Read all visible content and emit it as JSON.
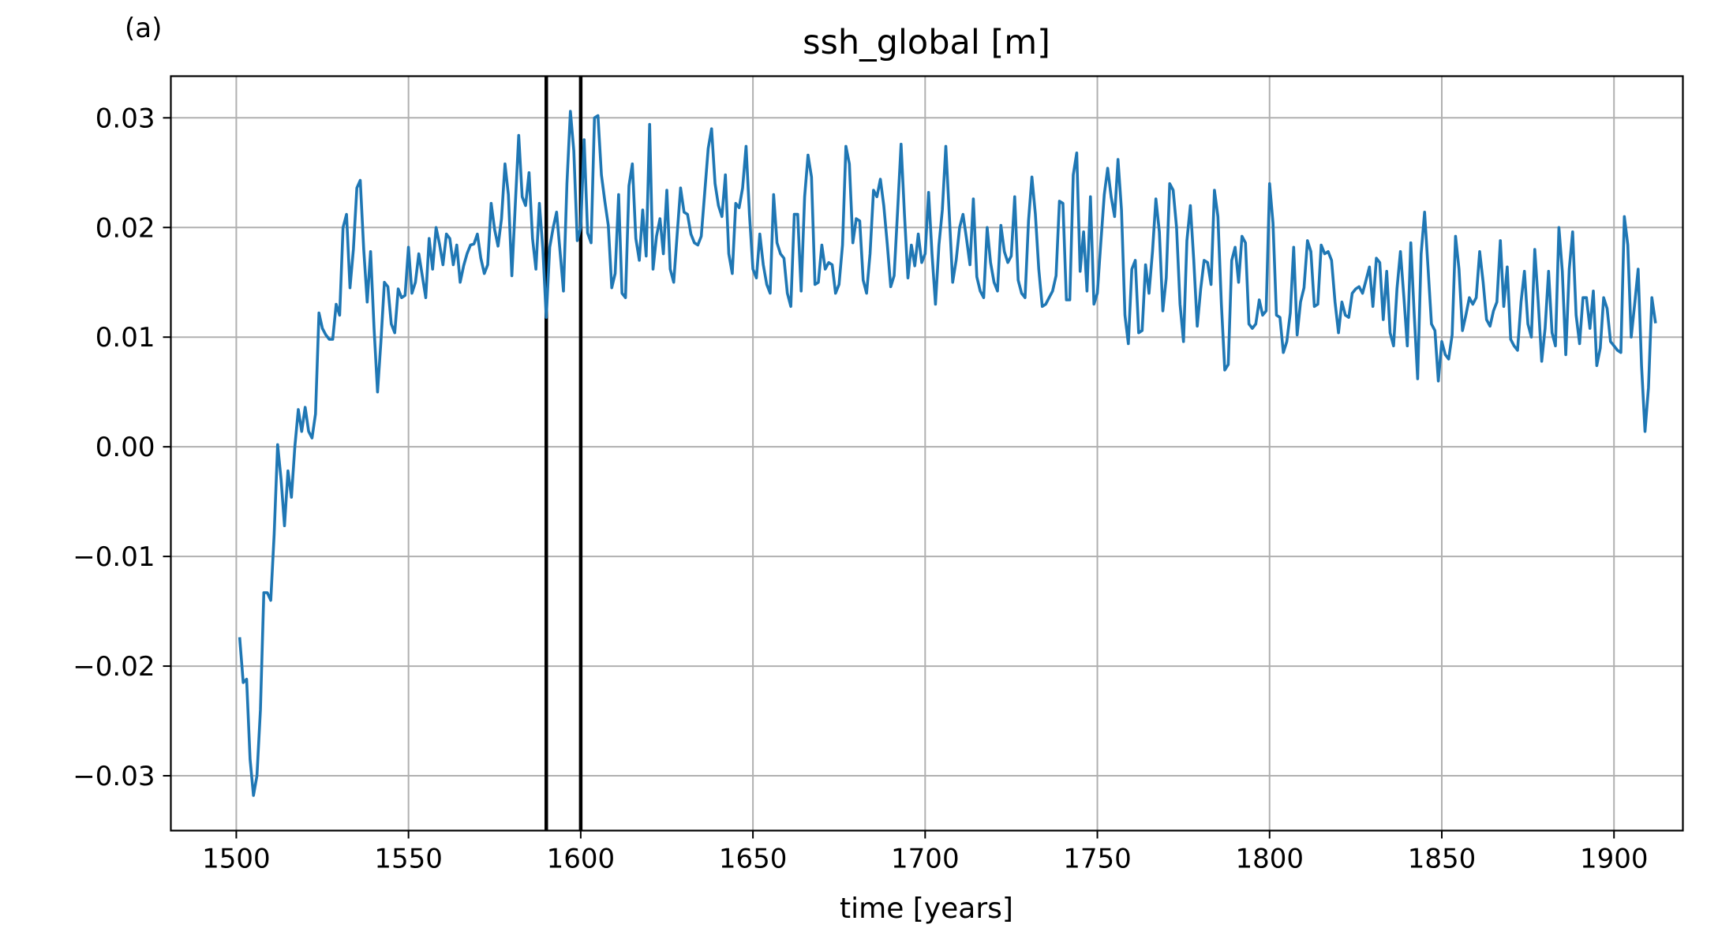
{
  "chart_data": {
    "type": "line",
    "panel_label": "(a)",
    "title": "ssh_global [m]",
    "xlabel": "time [years]",
    "ylabel": "",
    "xlim": [
      1481,
      1920
    ],
    "ylim": [
      -0.035,
      0.0338
    ],
    "xticks": [
      1500,
      1550,
      1600,
      1650,
      1700,
      1750,
      1800,
      1850,
      1900
    ],
    "xtick_labels": [
      "1500",
      "1550",
      "1600",
      "1650",
      "1700",
      "1750",
      "1800",
      "1850",
      "1900"
    ],
    "yticks": [
      -0.03,
      -0.02,
      -0.01,
      0.0,
      0.01,
      0.02,
      0.03
    ],
    "ytick_labels": [
      "−0.03",
      "−0.02",
      "−0.01",
      "0.00",
      "0.01",
      "0.02",
      "0.03"
    ],
    "grid": true,
    "vertical_lines": [
      1590,
      1600
    ],
    "colors": {
      "series": "#1f77b4",
      "vlines": "#000000",
      "grid": "#b0b0b0"
    },
    "series": [
      {
        "x_start": 1501,
        "x_step": 1,
        "values": [
          -0.0175,
          -0.0215,
          -0.0212,
          -0.0285,
          -0.0318,
          -0.03,
          -0.024,
          -0.0133,
          -0.0133,
          -0.014,
          -0.008,
          0.0002,
          -0.003,
          -0.0072,
          -0.0022,
          -0.0046,
          0.0,
          0.0034,
          0.0014,
          0.0036,
          0.0014,
          0.0008,
          0.003,
          0.0122,
          0.0108,
          0.0102,
          0.0098,
          0.0098,
          0.013,
          0.012,
          0.02,
          0.0212,
          0.0145,
          0.018,
          0.0236,
          0.0243,
          0.018,
          0.0132,
          0.0178,
          0.0108,
          0.005,
          0.0096,
          0.015,
          0.0146,
          0.0112,
          0.0104,
          0.0144,
          0.0136,
          0.0138,
          0.0182,
          0.014,
          0.015,
          0.0176,
          0.0156,
          0.0136,
          0.019,
          0.0162,
          0.02,
          0.0185,
          0.0166,
          0.0194,
          0.019,
          0.0166,
          0.0184,
          0.015,
          0.0165,
          0.0176,
          0.0184,
          0.0185,
          0.0194,
          0.0172,
          0.0158,
          0.0166,
          0.0222,
          0.0198,
          0.0183,
          0.0208,
          0.0258,
          0.023,
          0.0156,
          0.022,
          0.0284,
          0.0228,
          0.022,
          0.025,
          0.019,
          0.0162,
          0.0222,
          0.018,
          0.0118,
          0.0182,
          0.02,
          0.0214,
          0.0178,
          0.0142,
          0.024,
          0.0306,
          0.027,
          0.0188,
          0.02,
          0.028,
          0.0195,
          0.0186,
          0.03,
          0.0302,
          0.0248,
          0.0224,
          0.0202,
          0.0145,
          0.0158,
          0.023,
          0.014,
          0.0136,
          0.0238,
          0.0258,
          0.019,
          0.017,
          0.0216,
          0.0174,
          0.0294,
          0.0162,
          0.0192,
          0.0208,
          0.0176,
          0.0234,
          0.0162,
          0.015,
          0.0194,
          0.0236,
          0.0214,
          0.0212,
          0.0194,
          0.0186,
          0.0184,
          0.0192,
          0.0232,
          0.0272,
          0.029,
          0.024,
          0.022,
          0.021,
          0.0248,
          0.0176,
          0.0158,
          0.0222,
          0.0218,
          0.0236,
          0.0274,
          0.0212,
          0.0162,
          0.0154,
          0.0194,
          0.0166,
          0.0148,
          0.014,
          0.023,
          0.0186,
          0.0176,
          0.0172,
          0.014,
          0.0128,
          0.0212,
          0.0212,
          0.0142,
          0.0228,
          0.0266,
          0.0246,
          0.0148,
          0.015,
          0.0184,
          0.0162,
          0.0168,
          0.0166,
          0.014,
          0.0148,
          0.0184,
          0.0274,
          0.0258,
          0.0186,
          0.0208,
          0.0206,
          0.0152,
          0.014,
          0.0176,
          0.0234,
          0.0228,
          0.0244,
          0.022,
          0.0185,
          0.0146,
          0.0156,
          0.0215,
          0.0276,
          0.0212,
          0.0154,
          0.0184,
          0.0165,
          0.0194,
          0.0168,
          0.0176,
          0.0232,
          0.0176,
          0.013,
          0.0184,
          0.0216,
          0.0274,
          0.0212,
          0.015,
          0.017,
          0.02,
          0.0212,
          0.019,
          0.0166,
          0.0226,
          0.0155,
          0.0142,
          0.0136,
          0.02,
          0.0168,
          0.015,
          0.0142,
          0.0202,
          0.0178,
          0.0168,
          0.0174,
          0.0228,
          0.0152,
          0.014,
          0.0136,
          0.0206,
          0.0246,
          0.0212,
          0.0162,
          0.0128,
          0.013,
          0.0136,
          0.0142,
          0.0156,
          0.0224,
          0.0222,
          0.0134,
          0.0134,
          0.0248,
          0.0268,
          0.016,
          0.0196,
          0.0142,
          0.0228,
          0.013,
          0.014,
          0.0186,
          0.023,
          0.0254,
          0.0228,
          0.021,
          0.0262,
          0.0216,
          0.012,
          0.0094,
          0.0162,
          0.017,
          0.0104,
          0.0106,
          0.0166,
          0.014,
          0.0178,
          0.0226,
          0.0196,
          0.0124,
          0.0154,
          0.024,
          0.0234,
          0.02,
          0.013,
          0.0096,
          0.0188,
          0.022,
          0.017,
          0.011,
          0.0144,
          0.017,
          0.0168,
          0.0148,
          0.0234,
          0.021,
          0.013,
          0.007,
          0.0075,
          0.017,
          0.0182,
          0.015,
          0.0192,
          0.0186,
          0.0112,
          0.0108,
          0.0112,
          0.0134,
          0.012,
          0.0124,
          0.024,
          0.0204,
          0.012,
          0.0118,
          0.0086,
          0.0096,
          0.0122,
          0.0182,
          0.0102,
          0.0132,
          0.0145,
          0.0188,
          0.0178,
          0.0128,
          0.013,
          0.0184,
          0.0176,
          0.0178,
          0.017,
          0.0132,
          0.0104,
          0.0132,
          0.012,
          0.0118,
          0.014,
          0.0144,
          0.0146,
          0.014,
          0.0152,
          0.0164,
          0.0128,
          0.0172,
          0.0168,
          0.0116,
          0.016,
          0.0104,
          0.0092,
          0.0144,
          0.0178,
          0.0136,
          0.0092,
          0.0186,
          0.012,
          0.0062,
          0.0176,
          0.0214,
          0.0164,
          0.0112,
          0.0106,
          0.006,
          0.0096,
          0.0084,
          0.008,
          0.0102,
          0.0192,
          0.0162,
          0.0106,
          0.012,
          0.0136,
          0.013,
          0.0136,
          0.0178,
          0.015,
          0.0116,
          0.011,
          0.0124,
          0.0132,
          0.0188,
          0.0128,
          0.0164,
          0.0098,
          0.0092,
          0.0088,
          0.0132,
          0.016,
          0.0112,
          0.01,
          0.018,
          0.0132,
          0.0078,
          0.0108,
          0.016,
          0.0104,
          0.0092,
          0.02,
          0.016,
          0.0084,
          0.0162,
          0.0196,
          0.012,
          0.0094,
          0.0136,
          0.0136,
          0.0108,
          0.0142,
          0.0074,
          0.009,
          0.0136,
          0.0126,
          0.0096,
          0.0092,
          0.0088,
          0.0086,
          0.021,
          0.0184,
          0.01,
          0.013,
          0.0162,
          0.0074,
          0.0014,
          0.0054,
          0.0136,
          0.0114
        ]
      }
    ]
  }
}
